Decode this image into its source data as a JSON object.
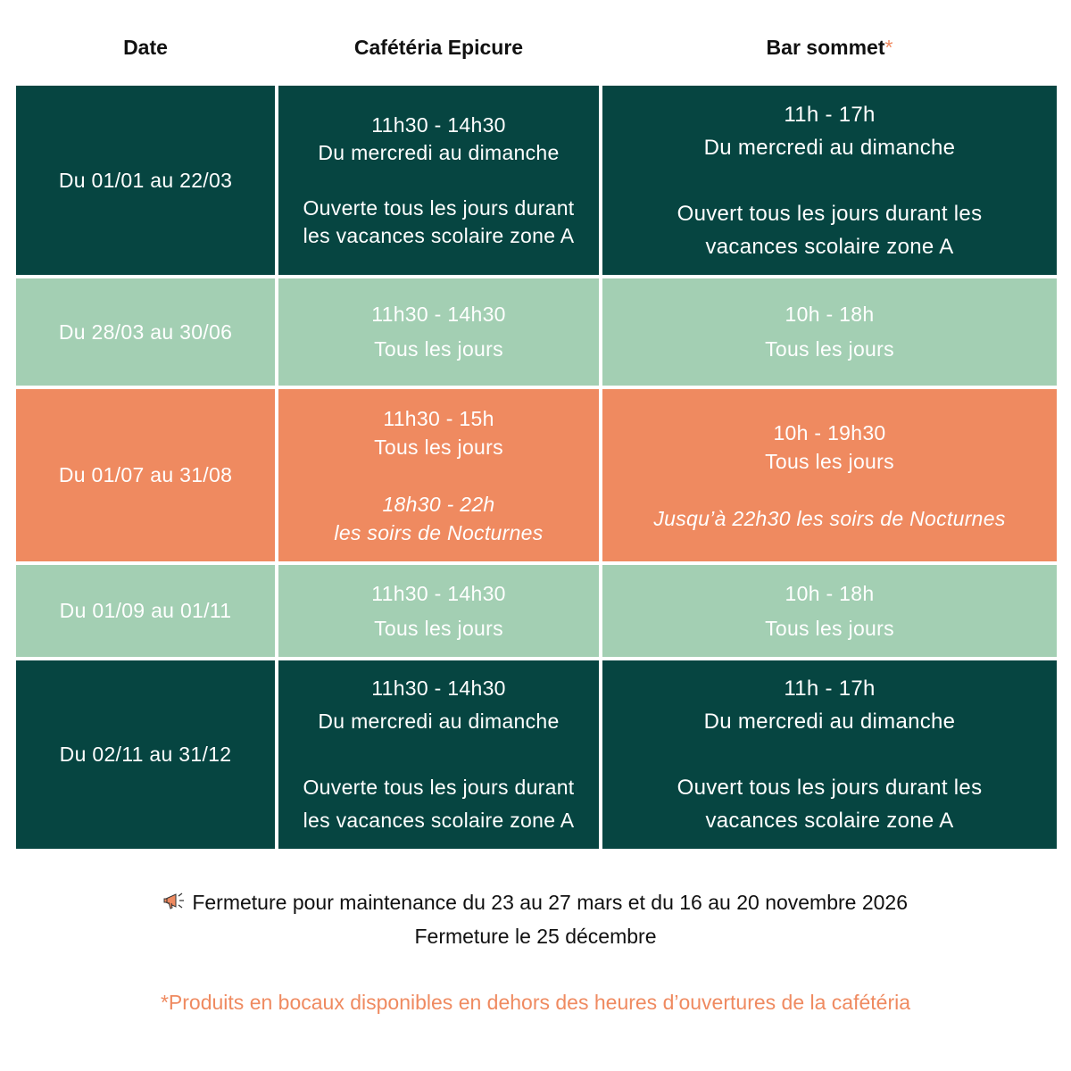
{
  "header": {
    "date": "Date",
    "cafeteria": "Cafétéria Epicure",
    "bar": "Bar sommet",
    "bar_asterisk": "*"
  },
  "colors": {
    "dark": "#064541",
    "green": "#a3cfb3",
    "orange": "#ef8a60"
  },
  "rows": [
    {
      "theme": "dark",
      "date": "Du 01/01 au 22/03",
      "cafeteria": [
        {
          "t": "11h30 - 14h30"
        },
        {
          "t": "Du mercredi au dimanche"
        },
        {
          "t": ""
        },
        {
          "t": "Ouverte tous les jours durant"
        },
        {
          "t": "les vacances scolaire zone A"
        }
      ],
      "bar": [
        {
          "t": "11h - 17h"
        },
        {
          "t": "Du mercredi au dimanche"
        },
        {
          "t": ""
        },
        {
          "t": "Ouvert tous les jours durant les"
        },
        {
          "t": "vacances scolaire zone A"
        }
      ]
    },
    {
      "theme": "green",
      "date": "Du 28/03 au 30/06",
      "cafeteria": [
        {
          "t": "11h30 - 14h30"
        },
        {
          "t": "Tous les jours"
        }
      ],
      "bar": [
        {
          "t": "10h - 18h"
        },
        {
          "t": "Tous les jours"
        }
      ]
    },
    {
      "theme": "orange",
      "date": "Du 01/07 au 31/08",
      "cafeteria": [
        {
          "t": "11h30 - 15h"
        },
        {
          "t": "Tous les jours"
        },
        {
          "t": ""
        },
        {
          "t": "18h30 - 22h",
          "i": true
        },
        {
          "t": "les soirs de Nocturnes",
          "i": true
        }
      ],
      "bar": [
        {
          "t": "10h - 19h30"
        },
        {
          "t": "Tous les jours"
        },
        {
          "t": ""
        },
        {
          "t": "Jusqu’à 22h30 les soirs de Nocturnes",
          "i": true
        }
      ]
    },
    {
      "theme": "green",
      "date": "Du 01/09 au 01/11",
      "cafeteria": [
        {
          "t": "11h30 - 14h30"
        },
        {
          "t": "Tous les jours"
        }
      ],
      "bar": [
        {
          "t": "10h - 18h"
        },
        {
          "t": "Tous les jours"
        }
      ]
    },
    {
      "theme": "dark",
      "date": "Du 02/11 au 31/12",
      "cafeteria": [
        {
          "t": "11h30 - 14h30"
        },
        {
          "t": "Du mercredi au dimanche"
        },
        {
          "t": ""
        },
        {
          "t": "Ouverte tous les jours durant"
        },
        {
          "t": "les vacances scolaire zone A"
        }
      ],
      "bar": [
        {
          "t": "11h - 17h"
        },
        {
          "t": "Du mercredi au dimanche"
        },
        {
          "t": ""
        },
        {
          "t": "Ouvert tous les jours durant les"
        },
        {
          "t": "vacances scolaire zone A"
        }
      ]
    }
  ],
  "notes": {
    "icon": "megaphone-icon",
    "maintenance": "Fermeture pour maintenance du 23 au 27 mars et du 16 au 20 novembre 2026",
    "christmas": "Fermeture le 25 décembre"
  },
  "footnote": "*Produits en bocaux disponibles en dehors des heures d’ouvertures de la cafétéria"
}
